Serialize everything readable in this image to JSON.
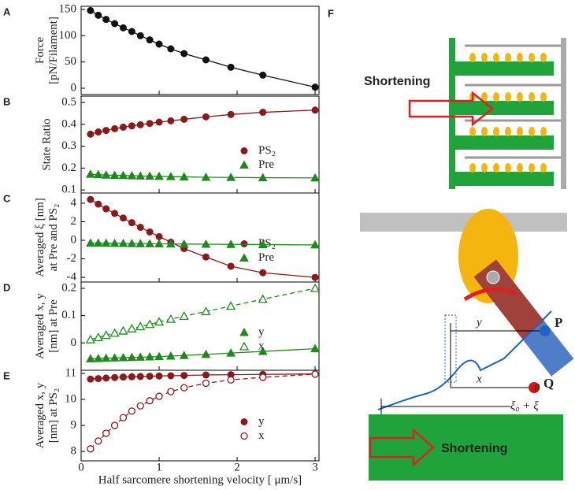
{
  "chart_data": [
    {
      "type": "scatter",
      "label": "A",
      "ylabel": [
        "Force",
        "[pN/Filament]"
      ],
      "xlim": [
        0,
        3.05
      ],
      "xticks": [
        0,
        1,
        2,
        3
      ],
      "ylim": [
        -12,
        156
      ],
      "yticks": [
        0,
        50,
        100,
        150
      ],
      "x": [
        0.12,
        0.22,
        0.32,
        0.43,
        0.54,
        0.65,
        0.76,
        0.88,
        1.0,
        1.15,
        1.32,
        1.6,
        1.92,
        2.33,
        3.0
      ],
      "series": [
        {
          "color": "#111111",
          "marker": "circle",
          "filled": true,
          "line": "solid",
          "values": [
            148,
            139,
            131,
            123,
            115,
            108,
            100,
            92,
            84,
            75,
            66,
            54,
            40,
            25,
            2
          ]
        }
      ]
    },
    {
      "type": "scatter",
      "label": "B",
      "ylabel": [
        "State Ratio"
      ],
      "legend": "center right",
      "xlim": [
        0,
        3.05
      ],
      "xticks": [
        0,
        1,
        2,
        3
      ],
      "ylim": [
        0.086,
        0.529
      ],
      "yticks": [
        0.1,
        0.2,
        0.3,
        0.4,
        0.5
      ],
      "x": [
        0.12,
        0.22,
        0.32,
        0.43,
        0.54,
        0.65,
        0.76,
        0.88,
        1.0,
        1.15,
        1.32,
        1.6,
        1.92,
        2.33,
        3.0
      ],
      "series": [
        {
          "name": "PS₂",
          "color": "#8b1a1a",
          "marker": "circle",
          "filled": true,
          "line": "solid",
          "values": [
            0.355,
            0.365,
            0.372,
            0.38,
            0.387,
            0.393,
            0.398,
            0.404,
            0.41,
            0.416,
            0.423,
            0.434,
            0.445,
            0.455,
            0.465
          ]
        },
        {
          "name": "Pre",
          "color": "#1e8a1e",
          "marker": "triangle",
          "filled": true,
          "line": "solid",
          "values": [
            0.172,
            0.17,
            0.168,
            0.167,
            0.166,
            0.165,
            0.164,
            0.163,
            0.162,
            0.161,
            0.16,
            0.158,
            0.157,
            0.156,
            0.155
          ]
        }
      ]
    },
    {
      "type": "scatter",
      "label": "C",
      "ylabel": [
        "Averaged ξ [nm]",
        "at Pre and PS₂"
      ],
      "legend": "center right",
      "xlim": [
        0,
        3.05
      ],
      "xticks": [
        0,
        1,
        2,
        3
      ],
      "ylim": [
        -4.5,
        5.1
      ],
      "yticks": [
        -4,
        -2,
        0,
        2,
        4
      ],
      "x": [
        0.12,
        0.22,
        0.32,
        0.43,
        0.54,
        0.65,
        0.76,
        0.88,
        1.0,
        1.15,
        1.32,
        1.6,
        1.92,
        2.33,
        3.0
      ],
      "series": [
        {
          "name": "PS₂",
          "color": "#8b1a1a",
          "marker": "circle",
          "filled": true,
          "line": "solid",
          "values": [
            4.4,
            3.9,
            3.4,
            2.9,
            2.4,
            1.9,
            1.4,
            0.9,
            0.4,
            -0.2,
            -0.9,
            -1.8,
            -2.8,
            -3.5,
            -4.0
          ]
        },
        {
          "name": "Pre",
          "color": "#1e8a1e",
          "marker": "triangle",
          "filled": true,
          "line": "solid",
          "values": [
            -0.3,
            -0.31,
            -0.32,
            -0.33,
            -0.34,
            -0.35,
            -0.36,
            -0.37,
            -0.38,
            -0.39,
            -0.4,
            -0.42,
            -0.44,
            -0.46,
            -0.5
          ]
        }
      ]
    },
    {
      "type": "scatter",
      "label": "D",
      "ylabel": [
        "Averaged x, y",
        "[nm] at Pre"
      ],
      "legend": "center right",
      "xlim": [
        0,
        3.05
      ],
      "xticks": [
        0,
        1,
        2,
        3
      ],
      "ylim": [
        -0.1,
        0.223
      ],
      "yticks": [
        0,
        0.1,
        0.2
      ],
      "x": [
        0.12,
        0.22,
        0.32,
        0.43,
        0.54,
        0.65,
        0.76,
        0.88,
        1.0,
        1.15,
        1.32,
        1.6,
        1.92,
        2.33,
        3.0
      ],
      "series": [
        {
          "name": "y",
          "color": "#1e8a1e",
          "marker": "triangle",
          "filled": true,
          "line": "solid",
          "values": [
            -0.058,
            -0.057,
            -0.056,
            -0.055,
            -0.054,
            -0.053,
            -0.052,
            -0.051,
            -0.05,
            -0.048,
            -0.046,
            -0.042,
            -0.037,
            -0.031,
            -0.021
          ]
        },
        {
          "name": "x",
          "color": "#1e8a1e",
          "marker": "triangle",
          "filled": false,
          "line": "dashed",
          "values": [
            0.012,
            0.02,
            0.028,
            0.036,
            0.044,
            0.052,
            0.06,
            0.068,
            0.077,
            0.087,
            0.098,
            0.115,
            0.135,
            0.16,
            0.2
          ]
        }
      ]
    },
    {
      "type": "scatter",
      "label": "E",
      "ylabel": [
        "Averaged x, y",
        "[nm] at PS₂"
      ],
      "legend": "center right",
      "xlabel": "Half sarcomere shortening velocity [ μm/s]",
      "xlim": [
        0,
        3.05
      ],
      "xticks": [
        0,
        1,
        2,
        3
      ],
      "ylim": [
        7.64,
        11.12
      ],
      "yticks": [
        8,
        9,
        10,
        11
      ],
      "x": [
        0.12,
        0.22,
        0.32,
        0.43,
        0.54,
        0.65,
        0.76,
        0.88,
        1.0,
        1.15,
        1.32,
        1.6,
        1.92,
        2.33,
        3.0
      ],
      "series": [
        {
          "name": "y",
          "color": "#8b1a1a",
          "marker": "circle",
          "filled": true,
          "line": "solid",
          "values": [
            10.78,
            10.8,
            10.82,
            10.84,
            10.86,
            10.87,
            10.88,
            10.89,
            10.9,
            10.91,
            10.92,
            10.94,
            10.95,
            10.96,
            10.98
          ]
        },
        {
          "name": "x",
          "color": "#8b1a1a",
          "marker": "circle",
          "filled": false,
          "line": "dashed",
          "values": [
            8.1,
            8.4,
            8.7,
            9.0,
            9.3,
            9.55,
            9.75,
            9.95,
            10.12,
            10.3,
            10.45,
            10.62,
            10.75,
            10.85,
            10.97
          ]
        }
      ]
    }
  ],
  "diagram": {
    "label": "F",
    "top_arrow": "Shortening",
    "bottom_arrow": "Shortening",
    "points": [
      "P",
      "Q"
    ],
    "vectors": [
      "y",
      "x"
    ],
    "angle": "θ",
    "displacement": "ξ₀ + ξ"
  }
}
